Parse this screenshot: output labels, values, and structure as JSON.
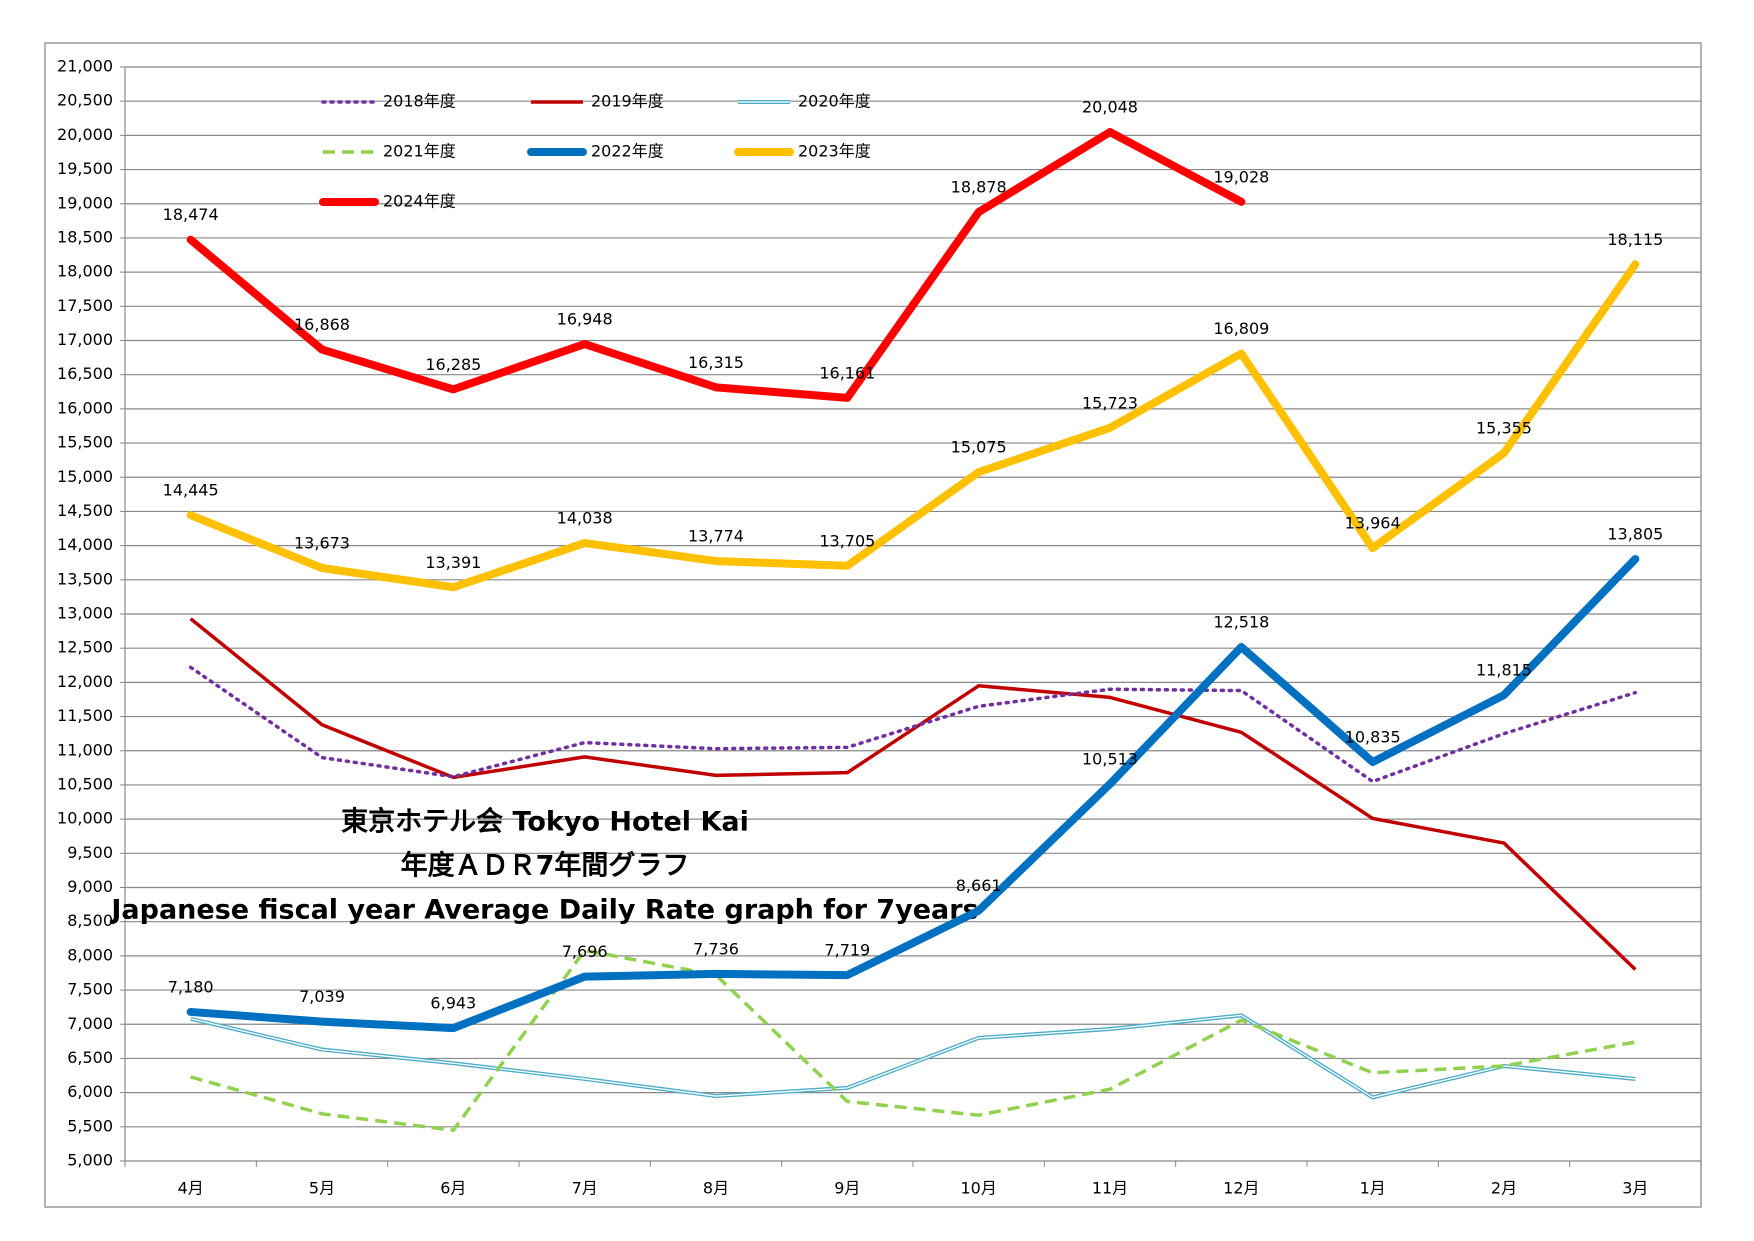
{
  "chart_data": {
    "type": "line",
    "title": [
      "東京ホテル会 Tokyo Hotel Kai",
      "年度ＡＤＲ7年間グラフ",
      "Japanese fiscal year Average Daily Rate graph for 7years"
    ],
    "categories": [
      "4月",
      "5月",
      "6月",
      "7月",
      "8月",
      "9月",
      "10月",
      "11月",
      "12月",
      "1月",
      "2月",
      "3月"
    ],
    "ylim": [
      5000,
      21000
    ],
    "yticks": [
      {
        "value": 5000,
        "label": "5,000"
      },
      {
        "value": 5500,
        "label": "5,500"
      },
      {
        "value": 6000,
        "label": "6,000"
      },
      {
        "value": 6500,
        "label": "6,500"
      },
      {
        "value": 7000,
        "label": "7,000"
      },
      {
        "value": 7500,
        "label": "7,500"
      },
      {
        "value": 8000,
        "label": "8,000"
      },
      {
        "value": 8500,
        "label": "8,500"
      },
      {
        "value": 9000,
        "label": "9,000"
      },
      {
        "value": 9500,
        "label": "9,500"
      },
      {
        "value": 10000,
        "label": "10,000"
      },
      {
        "value": 10500,
        "label": "10,500"
      },
      {
        "value": 11000,
        "label": "11,000"
      },
      {
        "value": 11500,
        "label": "11,500"
      },
      {
        "value": 12000,
        "label": "12,000"
      },
      {
        "value": 12500,
        "label": "12,500"
      },
      {
        "value": 13000,
        "label": "13,000"
      },
      {
        "value": 13500,
        "label": "13,500"
      },
      {
        "value": 14000,
        "label": "14,000"
      },
      {
        "value": 14500,
        "label": "14,500"
      },
      {
        "value": 15000,
        "label": "15,000"
      },
      {
        "value": 15500,
        "label": "15,500"
      },
      {
        "value": 16000,
        "label": "16,000"
      },
      {
        "value": 16500,
        "label": "16,500"
      },
      {
        "value": 17000,
        "label": "17,000"
      },
      {
        "value": 17500,
        "label": "17,500"
      },
      {
        "value": 18000,
        "label": "18,000"
      },
      {
        "value": 18500,
        "label": "18,500"
      },
      {
        "value": 19000,
        "label": "19,000"
      },
      {
        "value": 19500,
        "label": "19,500"
      },
      {
        "value": 20000,
        "label": "20,000"
      },
      {
        "value": 20500,
        "label": "20,500"
      },
      {
        "value": 21000,
        "label": "21,000"
      }
    ],
    "grid": true,
    "series": [
      {
        "name": "2018年度",
        "color": "#7030a0",
        "line_style": "dotted",
        "values": [
          12220,
          10900,
          10620,
          11120,
          11030,
          11050,
          11650,
          11900,
          11880,
          10550,
          11250,
          11850
        ]
      },
      {
        "name": "2019年度",
        "color": "#c00000",
        "line_style": "thin",
        "values": [
          12930,
          11380,
          10610,
          10910,
          10640,
          10680,
          11950,
          11780,
          11270,
          10010,
          9650,
          7800
        ]
      },
      {
        "name": "2020年度",
        "color": "#4bacc6",
        "line_style": "double",
        "values": [
          7080,
          6630,
          6430,
          6200,
          5950,
          6070,
          6800,
          6930,
          7130,
          5930,
          6390,
          6200
        ]
      },
      {
        "name": "2021年度",
        "color": "#92d050",
        "line_style": "dashed",
        "values": [
          6230,
          5690,
          5450,
          8080,
          7720,
          5870,
          5670,
          6050,
          7060,
          6290,
          6390,
          6740
        ]
      },
      {
        "name": "2022年度",
        "color": "#0070c0",
        "line_style": "thick",
        "values": [
          7180,
          7039,
          6943,
          7696,
          7736,
          7719,
          8661,
          10513,
          12518,
          10835,
          11815,
          13805
        ],
        "value_labels": [
          "7,180",
          "7,039",
          "6,943",
          "7,696",
          "7,736",
          "7,719",
          "8,661",
          "10,513",
          "12,518",
          "10,835",
          "11,815",
          "13,805"
        ]
      },
      {
        "name": "2023年度",
        "color": "#ffc000",
        "line_style": "thick",
        "values": [
          14445,
          13673,
          13391,
          14038,
          13774,
          13705,
          15075,
          15723,
          16809,
          13964,
          15355,
          18115
        ],
        "value_labels": [
          "14,445",
          "13,673",
          "13,391",
          "14,038",
          "13,774",
          "13,705",
          "15,075",
          "15,723",
          "16,809",
          "13,964",
          "15,355",
          "18,115"
        ]
      },
      {
        "name": "2024年度",
        "color": "#ff0000",
        "line_style": "thick",
        "values": [
          18474,
          16868,
          16285,
          16948,
          16315,
          16161,
          18878,
          20048,
          19028,
          null,
          null,
          null
        ],
        "value_labels": [
          "18,474",
          "16,868",
          "16,285",
          "16,948",
          "16,315",
          "16,161",
          "18,878",
          "20,048",
          "19,028",
          null,
          null,
          null
        ]
      }
    ]
  }
}
